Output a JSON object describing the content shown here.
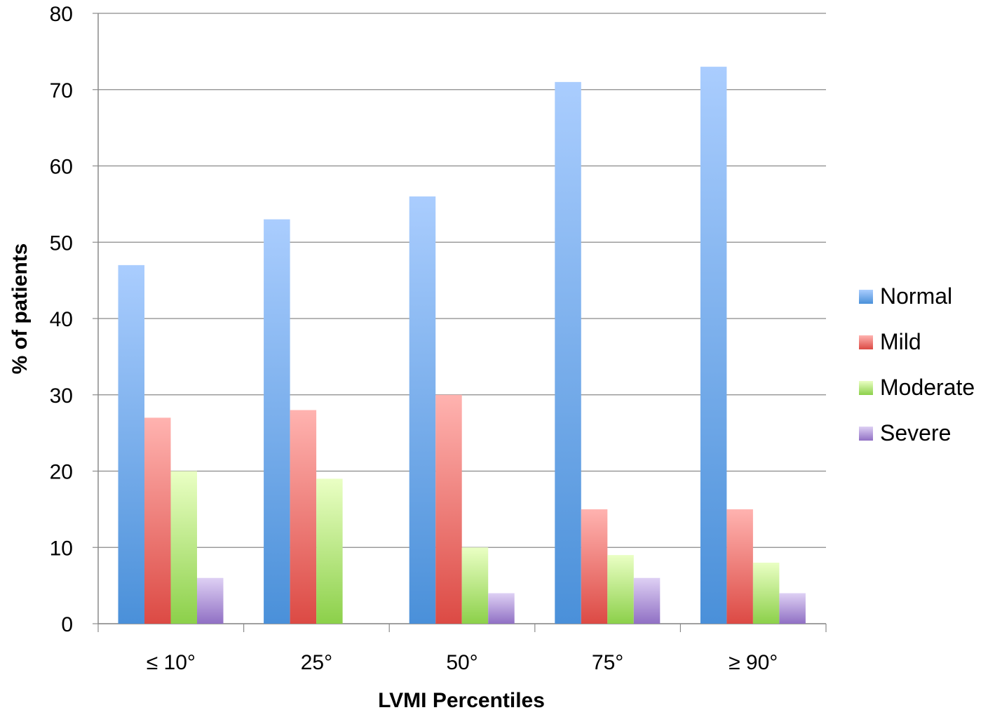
{
  "chart_data": {
    "type": "bar",
    "xlabel": "LVMI Percentiles",
    "ylabel": "% of patients",
    "ylim": [
      0,
      80
    ],
    "yticks": [
      0,
      10,
      20,
      30,
      40,
      50,
      60,
      70,
      80
    ],
    "grid": true,
    "legend_position": "right",
    "categories": [
      "≤ 10°",
      "25°",
      "50°",
      "75°",
      "≥ 90°"
    ],
    "series": [
      {
        "name": "Normal",
        "values": [
          47,
          53,
          56,
          71,
          73
        ],
        "color_top": "#aacdfe",
        "color_bottom": "#4a90d9"
      },
      {
        "name": "Mild",
        "values": [
          27,
          28,
          30,
          15,
          15
        ],
        "color_top": "#ffb3b0",
        "color_bottom": "#dc4a44"
      },
      {
        "name": "Moderate",
        "values": [
          20,
          19,
          10,
          9,
          8
        ],
        "color_top": "#eaffc4",
        "color_bottom": "#8cd04a"
      },
      {
        "name": "Severe",
        "values": [
          6,
          0,
          4,
          6,
          4
        ],
        "color_top": "#ded0f4",
        "color_bottom": "#9070c4"
      }
    ]
  }
}
